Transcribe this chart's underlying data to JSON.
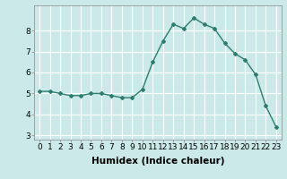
{
  "x": [
    0,
    1,
    2,
    3,
    4,
    5,
    6,
    7,
    8,
    9,
    10,
    11,
    12,
    13,
    14,
    15,
    16,
    17,
    18,
    19,
    20,
    21,
    22,
    23
  ],
  "y": [
    5.1,
    5.1,
    5.0,
    4.9,
    4.9,
    5.0,
    5.0,
    4.9,
    4.8,
    4.8,
    5.2,
    6.5,
    7.5,
    8.3,
    8.1,
    8.6,
    8.3,
    8.1,
    7.4,
    6.9,
    6.6,
    5.9,
    4.4,
    3.4
  ],
  "line_color": "#2d7d6e",
  "marker": "D",
  "marker_size": 2.0,
  "bg_color": "#cce9e9",
  "grid_color": "#ffffff",
  "xlabel": "Humidex (Indice chaleur)",
  "ylim": [
    2.8,
    9.2
  ],
  "xlim": [
    -0.5,
    23.5
  ],
  "yticks": [
    3,
    4,
    5,
    6,
    7,
    8
  ],
  "xticks": [
    0,
    1,
    2,
    3,
    4,
    5,
    6,
    7,
    8,
    9,
    10,
    11,
    12,
    13,
    14,
    15,
    16,
    17,
    18,
    19,
    20,
    21,
    22,
    23
  ],
  "xlabel_fontsize": 7.5,
  "tick_fontsize": 6.5,
  "line_width": 1.0
}
